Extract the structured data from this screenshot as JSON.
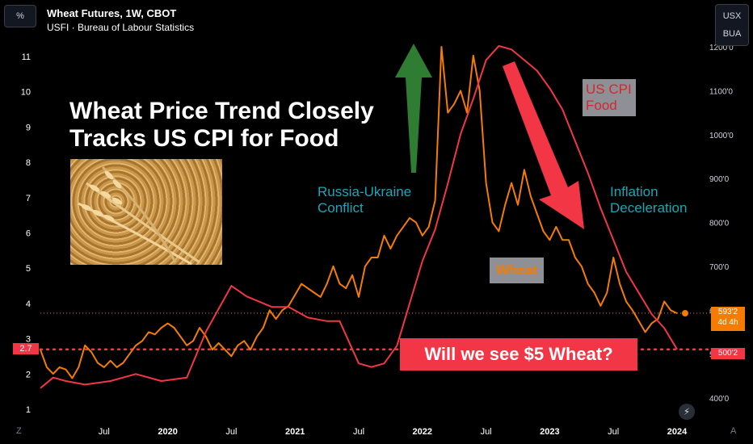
{
  "header": {
    "title": "Wheat Futures, 1W, CBOT",
    "subtitle": "USFI · Bureau of Labour Statistics"
  },
  "controls": {
    "percent_label": "%",
    "currency_label": "USX",
    "unit_label": "BUA",
    "z_label": "Z",
    "a_label": "A",
    "gauge_icon": "lightning-gauge-icon"
  },
  "annotations": {
    "headline_line1": "Wheat Price Trend Closely",
    "headline_line2": "Tracks US CPI for Food",
    "russia_line1": "Russia-Ukraine",
    "russia_line2": "Conflict",
    "inflation_line1": "Inflation",
    "inflation_line2": "Deceleration",
    "cpi_line1": "US CPI",
    "cpi_line2": "Food",
    "wheat_tag": "Wheat",
    "banner": "Will we see $5 Wheat?"
  },
  "badges": {
    "left_value": "2.7",
    "price_value": "593'2",
    "price_countdown": "4d 4h",
    "target_value": "500'2"
  },
  "colors": {
    "wheat": "#f57c00",
    "cpi": "#f23645",
    "teal": "#1aa6b7",
    "green_arrow": "#2e7d32",
    "red_arrow": "#f23645"
  },
  "chart_data": {
    "type": "line",
    "x_ticks": [
      "Jul",
      "2020",
      "Jul",
      "2021",
      "Jul",
      "2022",
      "Jul",
      "2023",
      "Jul",
      "2024"
    ],
    "left_axis": {
      "ticks": [
        "1",
        "2",
        "3",
        "4",
        "5",
        "6",
        "7",
        "8",
        "9",
        "10",
        "11"
      ],
      "range": [
        0.6,
        11.6
      ]
    },
    "right_axis": {
      "ticks": [
        "400'0",
        "500'0",
        "600'0",
        "700'0",
        "800'0",
        "900'0",
        "1000'0",
        "1100'0",
        "1200'0"
      ],
      "range": [
        370,
        1210
      ]
    },
    "reference_lines": {
      "left_value": 2.7,
      "current_price": 593.25
    },
    "series": [
      {
        "name": "Wheat",
        "axis": "right",
        "points": [
          [
            2019.0,
            510
          ],
          [
            2019.05,
            470
          ],
          [
            2019.1,
            455
          ],
          [
            2019.15,
            470
          ],
          [
            2019.2,
            465
          ],
          [
            2019.25,
            445
          ],
          [
            2019.3,
            470
          ],
          [
            2019.35,
            520
          ],
          [
            2019.4,
            505
          ],
          [
            2019.45,
            480
          ],
          [
            2019.5,
            470
          ],
          [
            2019.55,
            485
          ],
          [
            2019.6,
            470
          ],
          [
            2019.65,
            480
          ],
          [
            2019.7,
            500
          ],
          [
            2019.75,
            520
          ],
          [
            2019.8,
            530
          ],
          [
            2019.85,
            550
          ],
          [
            2019.9,
            545
          ],
          [
            2019.95,
            560
          ],
          [
            2020.0,
            570
          ],
          [
            2020.05,
            560
          ],
          [
            2020.1,
            540
          ],
          [
            2020.15,
            520
          ],
          [
            2020.2,
            530
          ],
          [
            2020.25,
            560
          ],
          [
            2020.3,
            540
          ],
          [
            2020.35,
            510
          ],
          [
            2020.4,
            525
          ],
          [
            2020.45,
            510
          ],
          [
            2020.5,
            495
          ],
          [
            2020.55,
            520
          ],
          [
            2020.6,
            530
          ],
          [
            2020.65,
            510
          ],
          [
            2020.7,
            540
          ],
          [
            2020.75,
            560
          ],
          [
            2020.8,
            600
          ],
          [
            2020.85,
            580
          ],
          [
            2020.9,
            600
          ],
          [
            2020.95,
            610
          ],
          [
            2021.0,
            635
          ],
          [
            2021.05,
            660
          ],
          [
            2021.1,
            650
          ],
          [
            2021.15,
            640
          ],
          [
            2021.2,
            630
          ],
          [
            2021.25,
            660
          ],
          [
            2021.3,
            700
          ],
          [
            2021.35,
            660
          ],
          [
            2021.4,
            650
          ],
          [
            2021.45,
            680
          ],
          [
            2021.5,
            630
          ],
          [
            2021.55,
            700
          ],
          [
            2021.6,
            720
          ],
          [
            2021.65,
            720
          ],
          [
            2021.7,
            770
          ],
          [
            2021.75,
            740
          ],
          [
            2021.8,
            770
          ],
          [
            2021.85,
            790
          ],
          [
            2021.9,
            810
          ],
          [
            2021.95,
            800
          ],
          [
            2022.0,
            770
          ],
          [
            2022.05,
            790
          ],
          [
            2022.1,
            850
          ],
          [
            2022.15,
            1200
          ],
          [
            2022.2,
            1050
          ],
          [
            2022.25,
            1070
          ],
          [
            2022.3,
            1100
          ],
          [
            2022.35,
            1050
          ],
          [
            2022.4,
            1180
          ],
          [
            2022.45,
            1100
          ],
          [
            2022.5,
            890
          ],
          [
            2022.55,
            800
          ],
          [
            2022.6,
            780
          ],
          [
            2022.65,
            840
          ],
          [
            2022.7,
            890
          ],
          [
            2022.75,
            840
          ],
          [
            2022.8,
            920
          ],
          [
            2022.85,
            860
          ],
          [
            2022.9,
            820
          ],
          [
            2022.95,
            780
          ],
          [
            2023.0,
            760
          ],
          [
            2023.05,
            790
          ],
          [
            2023.1,
            760
          ],
          [
            2023.15,
            760
          ],
          [
            2023.2,
            720
          ],
          [
            2023.25,
            700
          ],
          [
            2023.3,
            660
          ],
          [
            2023.35,
            640
          ],
          [
            2023.4,
            610
          ],
          [
            2023.45,
            640
          ],
          [
            2023.5,
            720
          ],
          [
            2023.55,
            660
          ],
          [
            2023.6,
            620
          ],
          [
            2023.65,
            600
          ],
          [
            2023.7,
            575
          ],
          [
            2023.75,
            550
          ],
          [
            2023.8,
            570
          ],
          [
            2023.85,
            580
          ],
          [
            2023.9,
            620
          ],
          [
            2023.95,
            600
          ],
          [
            2024.0,
            593
          ]
        ]
      },
      {
        "name": "US CPI Food",
        "axis": "left",
        "points": [
          [
            2019.0,
            1.6
          ],
          [
            2019.1,
            1.9
          ],
          [
            2019.2,
            1.8
          ],
          [
            2019.35,
            1.7
          ],
          [
            2019.55,
            1.8
          ],
          [
            2019.75,
            2.0
          ],
          [
            2019.95,
            1.8
          ],
          [
            2020.15,
            1.9
          ],
          [
            2020.3,
            3.2
          ],
          [
            2020.5,
            4.5
          ],
          [
            2020.62,
            4.2
          ],
          [
            2020.82,
            3.9
          ],
          [
            2020.95,
            3.9
          ],
          [
            2021.1,
            3.6
          ],
          [
            2021.25,
            3.5
          ],
          [
            2021.35,
            3.5
          ],
          [
            2021.5,
            2.3
          ],
          [
            2021.6,
            2.2
          ],
          [
            2021.7,
            2.3
          ],
          [
            2021.8,
            2.8
          ],
          [
            2021.9,
            4.0
          ],
          [
            2022.0,
            5.2
          ],
          [
            2022.1,
            6.1
          ],
          [
            2022.2,
            7.4
          ],
          [
            2022.3,
            8.8
          ],
          [
            2022.4,
            9.8
          ],
          [
            2022.5,
            10.9
          ],
          [
            2022.6,
            11.3
          ],
          [
            2022.7,
            11.2
          ],
          [
            2022.8,
            10.9
          ],
          [
            2022.9,
            10.6
          ],
          [
            2023.0,
            10.1
          ],
          [
            2023.1,
            9.5
          ],
          [
            2023.2,
            8.6
          ],
          [
            2023.3,
            7.7
          ],
          [
            2023.4,
            6.7
          ],
          [
            2023.5,
            5.8
          ],
          [
            2023.6,
            4.9
          ],
          [
            2023.7,
            4.3
          ],
          [
            2023.8,
            3.7
          ],
          [
            2023.9,
            3.3
          ],
          [
            2024.0,
            2.7
          ]
        ]
      }
    ]
  }
}
